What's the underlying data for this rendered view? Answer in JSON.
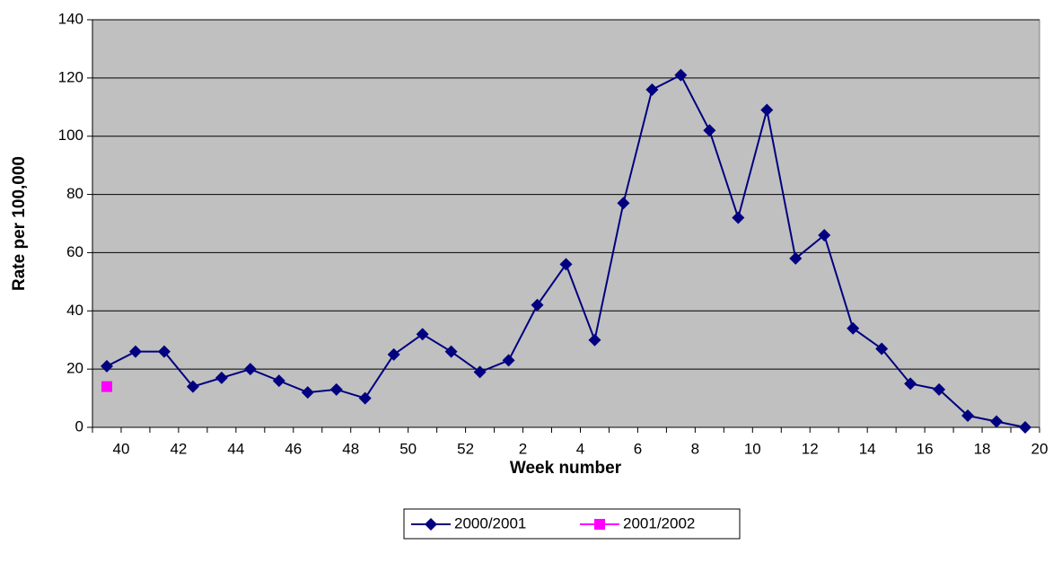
{
  "chart_data": {
    "type": "line",
    "x_label": "Week number",
    "y_label": "Rate per 100,000",
    "categories": [
      "40",
      null,
      "42",
      null,
      "44",
      null,
      "46",
      null,
      "48",
      null,
      "50",
      null,
      "52",
      null,
      "2",
      null,
      "4",
      null,
      "6",
      null,
      "8",
      null,
      "10",
      null,
      "12",
      null,
      "14",
      null,
      "16",
      null,
      "18",
      null,
      "20"
    ],
    "series": [
      {
        "name": "2000/2001",
        "color": "#000080",
        "marker": "diamond",
        "values": [
          21,
          26,
          26,
          14,
          17,
          20,
          16,
          12,
          13,
          10,
          25,
          32,
          26,
          19,
          23,
          42,
          56,
          30,
          77,
          116,
          121,
          102,
          72,
          109,
          58,
          66,
          34,
          27,
          15,
          13,
          4,
          2,
          0
        ]
      },
      {
        "name": "2001/2002",
        "color": "#ff00ff",
        "marker": "square",
        "values": [
          14,
          null,
          null,
          null,
          null,
          null,
          null,
          null,
          null,
          null,
          null,
          null,
          null,
          null,
          null,
          null,
          null,
          null,
          null,
          null,
          null,
          null,
          null,
          null,
          null,
          null,
          null,
          null,
          null,
          null,
          null,
          null,
          null
        ]
      }
    ],
    "ylim": [
      0,
      140
    ],
    "yticks": [
      0,
      20,
      40,
      60,
      80,
      100,
      120,
      140
    ],
    "grid": true,
    "plot_background": "#c0c0c0",
    "legend": "bottom"
  }
}
